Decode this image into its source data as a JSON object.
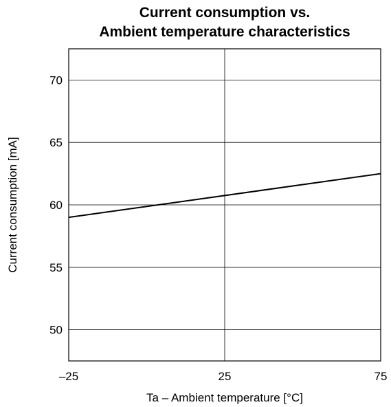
{
  "chart_data": {
    "type": "line",
    "title_lines": [
      "Current consumption vs.",
      "Ambient temperature characteristics"
    ],
    "xlabel": "Ta – Ambient temperature [°C]",
    "ylabel": "Current consumption [mA]",
    "xlim": [
      -25,
      75
    ],
    "ylim": [
      47.5,
      72.5
    ],
    "x_ticks": [
      -25,
      25,
      75
    ],
    "x_tick_labels": [
      "–25",
      "25",
      "75"
    ],
    "y_ticks": [
      50,
      55,
      60,
      65,
      70
    ],
    "y_tick_labels": [
      "50",
      "55",
      "60",
      "65",
      "70"
    ],
    "grid": true,
    "series": [
      {
        "x": [
          -25,
          75
        ],
        "y": [
          59.0,
          62.5
        ],
        "color": "#000000"
      }
    ]
  }
}
